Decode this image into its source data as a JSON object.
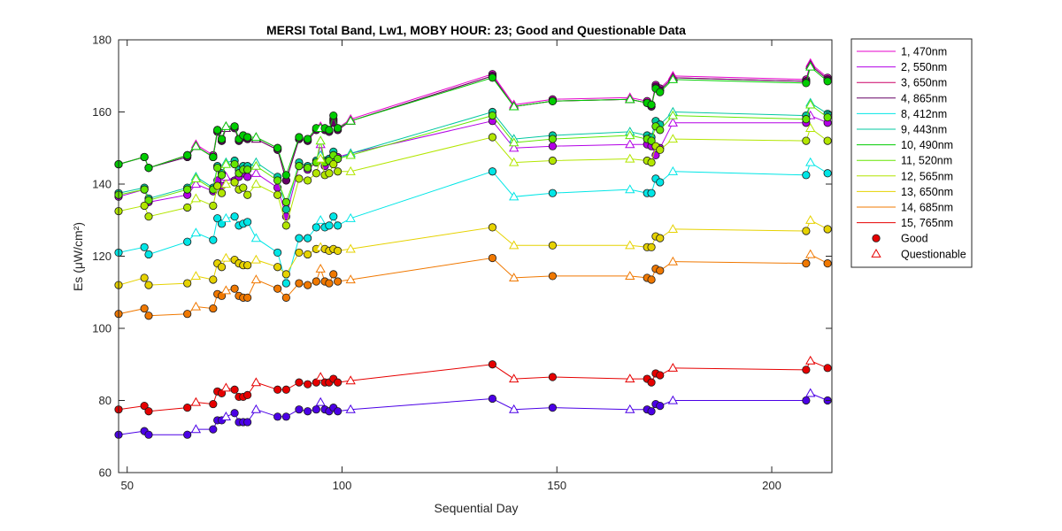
{
  "chart_data": {
    "type": "line",
    "title": "MERSI Total Band,  Lw1, MOBY HOUR: 23;  Good and Questionable Data",
    "xlabel": "Sequential Day",
    "ylabel": "Es (μW/cm²)",
    "xlim": [
      48,
      214
    ],
    "ylim": [
      60,
      180
    ],
    "xticks": [
      50,
      100,
      150,
      200
    ],
    "yticks": [
      60,
      80,
      100,
      120,
      140,
      160,
      180
    ],
    "grid": false,
    "legend_position": "outside-right",
    "x": [
      48,
      54,
      55,
      64,
      66,
      70,
      71,
      72,
      73,
      75,
      76,
      77,
      78,
      80,
      85,
      87,
      90,
      92,
      94,
      95,
      96,
      97,
      98,
      99,
      102,
      135,
      140,
      149,
      167,
      171,
      172,
      173,
      174,
      177,
      208,
      209,
      213
    ],
    "quality": [
      "G",
      "G",
      "G",
      "G",
      "Q",
      "G",
      "G",
      "G",
      "Q",
      "G",
      "G",
      "G",
      "G",
      "Q",
      "G",
      "G",
      "G",
      "G",
      "G",
      "Q",
      "G",
      "G",
      "G",
      "G",
      "Q",
      "G",
      "Q",
      "G",
      "Q",
      "G",
      "G",
      "G",
      "G",
      "Q",
      "G",
      "Q",
      "G"
    ],
    "series": [
      {
        "name": "1, 470nm",
        "color": "#e600cc",
        "values": [
          145.5,
          147.5,
          144.5,
          148.0,
          151.0,
          148.0,
          155.0,
          152.5,
          156.0,
          156.0,
          152.5,
          153.5,
          153.0,
          153.0,
          150.0,
          141.0,
          153.0,
          152.5,
          155.5,
          156.0,
          155.5,
          155.0,
          158.0,
          155.5,
          158.0,
          170.5,
          162.0,
          163.5,
          164.0,
          163.0,
          162.0,
          167.5,
          166.5,
          170.0,
          169.0,
          173.5,
          169.5
        ]
      },
      {
        "name": "2, 550nm",
        "color": "#b300e6",
        "values": [
          136.5,
          138.5,
          135.0,
          137.0,
          140.0,
          138.0,
          141.0,
          139.5,
          142.0,
          141.0,
          142.0,
          143.0,
          142.0,
          143.0,
          139.0,
          131.0,
          145.0,
          144.0,
          146.0,
          151.0,
          145.0,
          147.0,
          148.0,
          147.5,
          148.5,
          157.5,
          150.0,
          150.5,
          151.0,
          151.0,
          150.5,
          148.0,
          150.0,
          157.0,
          157.0,
          159.0,
          157.0
        ]
      },
      {
        "name": "3, 650nm",
        "color": "#cc0066",
        "values": [
          145.5,
          147.5,
          144.5,
          148.0,
          150.5,
          147.5,
          154.5,
          152.0,
          155.5,
          155.5,
          152.0,
          153.0,
          152.5,
          152.5,
          149.5,
          141.0,
          152.5,
          152.0,
          155.0,
          155.5,
          155.0,
          154.5,
          157.5,
          155.0,
          157.5,
          170.0,
          161.5,
          163.0,
          163.5,
          162.5,
          161.5,
          167.0,
          166.0,
          169.5,
          168.5,
          173.0,
          169.0
        ]
      },
      {
        "name": "4, 865nm",
        "color": "#660066",
        "values": [
          145.5,
          147.5,
          144.5,
          147.5,
          150.5,
          147.5,
          154.5,
          152.0,
          155.5,
          155.5,
          152.0,
          153.0,
          152.5,
          152.5,
          149.5,
          141.0,
          152.5,
          152.0,
          155.0,
          155.5,
          155.0,
          154.5,
          157.0,
          155.0,
          157.5,
          170.0,
          161.5,
          163.0,
          163.5,
          162.5,
          161.5,
          167.0,
          166.0,
          169.5,
          168.5,
          173.0,
          169.0
        ]
      },
      {
        "name": "8, 412nm",
        "color": "#00e6e6",
        "values": [
          121.0,
          122.5,
          120.5,
          124.0,
          126.5,
          124.5,
          130.5,
          129.0,
          130.5,
          131.0,
          128.5,
          129.0,
          129.5,
          125.0,
          121.0,
          112.5,
          125.0,
          125.0,
          128.0,
          130.0,
          128.0,
          128.5,
          131.0,
          128.5,
          130.5,
          143.5,
          136.5,
          137.5,
          138.5,
          137.5,
          137.5,
          141.5,
          140.5,
          143.5,
          142.5,
          146.0,
          143.0
        ]
      },
      {
        "name": "9, 443nm",
        "color": "#00c8a0",
        "values": [
          137.5,
          139.0,
          136.0,
          139.0,
          142.0,
          139.0,
          145.0,
          143.0,
          146.0,
          146.5,
          144.0,
          145.0,
          145.0,
          146.0,
          142.0,
          133.0,
          146.0,
          145.0,
          146.5,
          148.0,
          146.5,
          147.0,
          149.0,
          147.0,
          148.5,
          160.0,
          152.5,
          153.5,
          154.5,
          153.5,
          153.0,
          157.5,
          156.5,
          160.0,
          159.0,
          162.5,
          159.5
        ]
      },
      {
        "name": "10, 490nm",
        "color": "#00cc00",
        "values": [
          145.5,
          147.5,
          144.5,
          148.0,
          150.5,
          147.5,
          155.0,
          152.5,
          156.0,
          156.0,
          152.5,
          153.5,
          153.0,
          153.0,
          150.0,
          142.5,
          153.0,
          152.5,
          155.5,
          155.5,
          155.5,
          155.0,
          159.0,
          155.5,
          157.5,
          169.5,
          161.5,
          163.0,
          163.5,
          162.5,
          162.0,
          166.5,
          165.5,
          169.0,
          168.0,
          172.5,
          168.5
        ]
      },
      {
        "name": "11, 520nm",
        "color": "#66e600",
        "values": [
          137.0,
          138.5,
          135.5,
          138.5,
          141.5,
          138.5,
          144.5,
          142.5,
          145.5,
          145.5,
          143.0,
          144.0,
          144.0,
          145.0,
          141.0,
          135.0,
          145.0,
          144.5,
          146.0,
          152.0,
          146.0,
          146.5,
          148.0,
          147.0,
          148.0,
          159.0,
          151.5,
          152.5,
          153.5,
          152.5,
          152.0,
          156.0,
          155.0,
          159.0,
          158.0,
          162.0,
          158.5
        ]
      },
      {
        "name": "12, 565nm",
        "color": "#b3e600",
        "values": [
          132.5,
          134.0,
          131.0,
          133.5,
          136.0,
          134.0,
          139.5,
          137.5,
          140.0,
          140.5,
          138.5,
          139.0,
          137.0,
          140.0,
          137.0,
          128.5,
          141.5,
          141.0,
          143.0,
          147.0,
          142.5,
          143.0,
          145.5,
          143.5,
          143.5,
          153.0,
          146.0,
          146.5,
          147.0,
          146.5,
          146.0,
          150.5,
          149.5,
          152.5,
          152.0,
          155.5,
          152.0
        ]
      },
      {
        "name": "13, 650nm",
        "color": "#e6d200",
        "values": [
          112.0,
          114.0,
          112.0,
          112.5,
          114.5,
          113.5,
          118.0,
          117.0,
          119.5,
          119.0,
          118.0,
          117.5,
          117.5,
          119.0,
          117.0,
          115.0,
          121.0,
          120.5,
          122.0,
          122.5,
          122.0,
          121.5,
          122.0,
          121.5,
          122.0,
          128.0,
          123.0,
          123.0,
          123.0,
          122.5,
          122.5,
          125.5,
          125.0,
          127.5,
          127.0,
          130.0,
          127.5
        ]
      },
      {
        "name": "14, 685nm",
        "color": "#f07800",
        "values": [
          104.0,
          105.5,
          103.5,
          104.0,
          106.0,
          105.5,
          109.5,
          109.0,
          110.5,
          111.0,
          109.0,
          108.5,
          108.5,
          113.5,
          111.0,
          108.5,
          112.5,
          112.0,
          113.0,
          116.5,
          113.0,
          112.5,
          115.0,
          113.0,
          113.5,
          119.5,
          114.0,
          114.5,
          114.5,
          114.0,
          113.5,
          116.5,
          116.0,
          118.5,
          118.0,
          120.5,
          118.0
        ]
      },
      {
        "name": "15, 765nm",
        "color": "#e60000",
        "values": [
          77.5,
          78.5,
          77.0,
          78.0,
          79.5,
          79.0,
          82.5,
          82.0,
          83.5,
          83.0,
          81.0,
          81.0,
          81.5,
          85.0,
          83.0,
          83.0,
          85.0,
          84.5,
          85.0,
          86.5,
          85.0,
          85.0,
          86.0,
          85.0,
          85.5,
          90.0,
          86.0,
          86.5,
          86.0,
          86.0,
          85.0,
          87.5,
          87.0,
          89.0,
          88.5,
          91.0,
          89.0
        ]
      },
      {
        "name": "",
        "color": "#4b00e6",
        "values": [
          70.5,
          71.5,
          70.5,
          70.5,
          72.0,
          72.0,
          74.5,
          74.5,
          75.5,
          76.5,
          74.0,
          74.0,
          74.0,
          77.5,
          75.5,
          75.5,
          77.5,
          77.0,
          77.5,
          79.5,
          77.5,
          77.0,
          78.0,
          77.0,
          77.5,
          80.5,
          77.5,
          78.0,
          77.5,
          77.5,
          77.0,
          79.0,
          78.5,
          80.0,
          80.0,
          82.0,
          80.0
        ]
      }
    ],
    "legend": {
      "entries": [
        "1, 470nm",
        "2, 550nm",
        "3, 650nm",
        "4, 865nm",
        "8, 412nm",
        "9, 443nm",
        "10, 490nm",
        "11, 520nm",
        "12, 565nm",
        "13, 650nm",
        "14, 685nm",
        "15, 765nm"
      ],
      "marker_good_label": "Good",
      "marker_questionable_label": "Questionable",
      "marker_color": "#e60000"
    }
  }
}
